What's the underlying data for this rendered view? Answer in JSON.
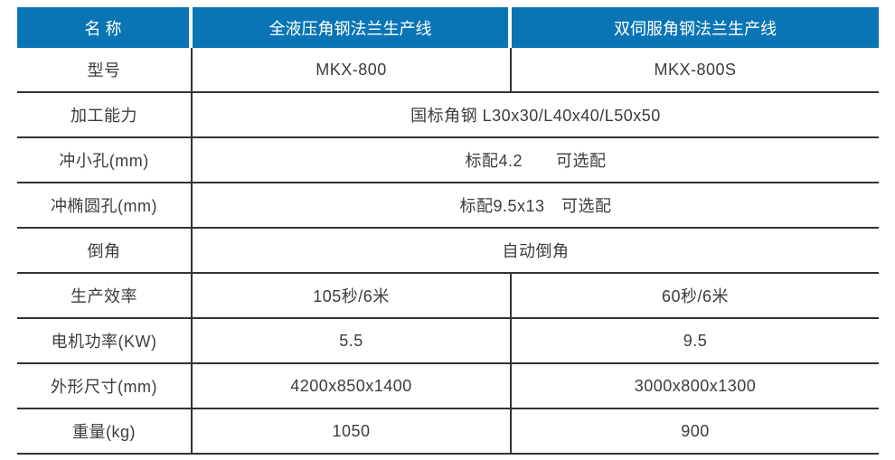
{
  "table": {
    "colors": {
      "header_bg": "#0a75b4",
      "header_text": "#ffffff",
      "body_text": "#3c3c3c",
      "rule": "#333333"
    },
    "header": {
      "name_col": "名 称",
      "machine1": "全液压角钢法兰生产线",
      "machine2": "双伺服角钢法兰生产线"
    },
    "rows": [
      {
        "label": "型号",
        "col2": "MKX-800",
        "col3": "MKX-800S"
      },
      {
        "label": "加工能力",
        "merged": "国标角钢 L30x30/L40x40/L50x50"
      },
      {
        "label": "冲小孔(mm)",
        "merged": "标配4.2　　可选配"
      },
      {
        "label": "冲椭圆孔(mm)",
        "merged": "标配9.5x13　可选配"
      },
      {
        "label": "倒角",
        "merged": "自动倒角"
      },
      {
        "label": "生产效率",
        "col2": "105秒/6米",
        "col3": "60秒/6米"
      },
      {
        "label": "电机功率(KW)",
        "col2": "5.5",
        "col3": "9.5"
      },
      {
        "label": "外形尺寸(mm)",
        "col2": "4200x850x1400",
        "col3": "3000x800x1300"
      },
      {
        "label": "重量(kg)",
        "col2": "1050",
        "col3": "900"
      }
    ]
  }
}
